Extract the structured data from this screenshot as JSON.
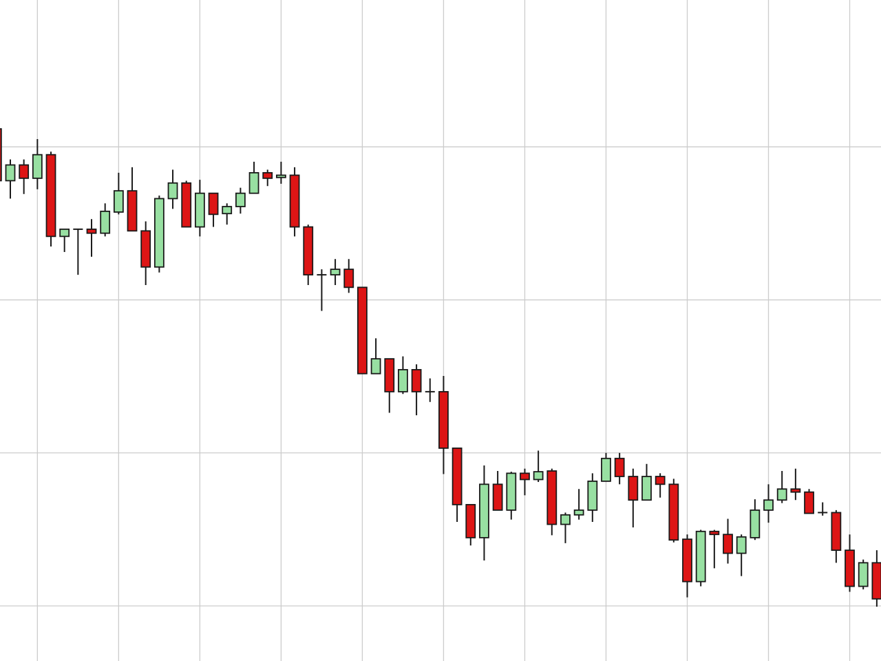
{
  "chart_data": {
    "type": "candlestick",
    "title": "",
    "xlabel": "",
    "ylabel": "",
    "ylim": [
      -36,
      396
    ],
    "grid": true,
    "y_gridlines": [
      0,
      100,
      200,
      300
    ],
    "x_gridline_every_n_candles": 6,
    "colors": {
      "up": "#98e0a2",
      "down": "#dd1515",
      "outline": "#1a1a1a",
      "grid": "#cccccc",
      "background": "#ffffff"
    },
    "ohlc_order": [
      "open",
      "high",
      "low",
      "close"
    ],
    "candles": [
      [
        311.8,
        324.6,
        275.9,
        277.9
      ],
      [
        277.9,
        291.8,
        266.2,
        288.2
      ],
      [
        288.2,
        291.8,
        269.2,
        279.5
      ],
      [
        279.5,
        305.1,
        272.3,
        294.9
      ],
      [
        294.9,
        296.9,
        234.9,
        241.5
      ],
      [
        241.5,
        246.2,
        231.3,
        246.2
      ],
      [
        246.2,
        246.2,
        216.4,
        246.2
      ],
      [
        246.2,
        252.8,
        228.2,
        243.6
      ],
      [
        243.6,
        263.1,
        241.5,
        257.9
      ],
      [
        257.4,
        283.1,
        255.9,
        271.3
      ],
      [
        271.3,
        286.7,
        245.1,
        245.1
      ],
      [
        245.1,
        251.3,
        209.7,
        221.5
      ],
      [
        221.5,
        268.2,
        217.9,
        266.2
      ],
      [
        266.2,
        285.1,
        259.5,
        276.4
      ],
      [
        276.4,
        277.9,
        247.7,
        247.7
      ],
      [
        247.7,
        278.5,
        241.5,
        269.7
      ],
      [
        269.7,
        269.7,
        247.7,
        255.9
      ],
      [
        256.4,
        263.1,
        249.2,
        261.0
      ],
      [
        261.0,
        273.3,
        256.4,
        269.7
      ],
      [
        269.7,
        290.3,
        269.7,
        283.1
      ],
      [
        283.1,
        285.1,
        274.4,
        279.5
      ],
      [
        280.0,
        290.3,
        275.9,
        281.5
      ],
      [
        281.5,
        286.7,
        241.5,
        247.7
      ],
      [
        247.7,
        249.2,
        209.7,
        216.4
      ],
      [
        216.4,
        220.0,
        192.8,
        216.4
      ],
      [
        216.4,
        226.7,
        209.7,
        220.0
      ],
      [
        220.0,
        226.7,
        204.6,
        208.2
      ],
      [
        208.2,
        208.2,
        151.8,
        151.8
      ],
      [
        151.8,
        174.9,
        151.8,
        161.5
      ],
      [
        161.5,
        161.5,
        126.2,
        140.0
      ],
      [
        140.0,
        163.1,
        138.5,
        154.4
      ],
      [
        154.4,
        157.9,
        124.6,
        140.0
      ],
      [
        140.0,
        148.7,
        133.3,
        140.0
      ],
      [
        140.0,
        150.3,
        86.2,
        103.1
      ],
      [
        103.1,
        103.1,
        54.9,
        66.2
      ],
      [
        66.2,
        66.2,
        39.5,
        44.6
      ],
      [
        44.6,
        91.8,
        29.7,
        79.5
      ],
      [
        79.5,
        88.2,
        62.6,
        62.6
      ],
      [
        62.6,
        87.7,
        56.4,
        86.7
      ],
      [
        86.7,
        89.7,
        72.3,
        82.6
      ],
      [
        82.6,
        101.5,
        81.0,
        87.7
      ],
      [
        88.2,
        89.7,
        46.2,
        53.3
      ],
      [
        53.3,
        61.0,
        41.0,
        59.5
      ],
      [
        59.5,
        76.4,
        56.4,
        62.6
      ],
      [
        62.6,
        86.7,
        54.9,
        81.5
      ],
      [
        81.5,
        100.0,
        81.5,
        96.4
      ],
      [
        96.4,
        100.0,
        79.5,
        84.6
      ],
      [
        84.6,
        89.7,
        51.3,
        69.2
      ],
      [
        69.2,
        92.8,
        69.2,
        84.6
      ],
      [
        84.6,
        86.7,
        70.8,
        79.5
      ],
      [
        79.5,
        83.1,
        41.5,
        43.1
      ],
      [
        43.6,
        46.7,
        5.6,
        15.9
      ],
      [
        15.9,
        49.7,
        12.8,
        48.7
      ],
      [
        48.7,
        49.7,
        24.6,
        46.7
      ],
      [
        46.7,
        56.9,
        27.7,
        34.4
      ],
      [
        34.4,
        46.7,
        19.5,
        45.1
      ],
      [
        44.6,
        69.7,
        43.1,
        62.6
      ],
      [
        62.6,
        79.5,
        54.4,
        69.2
      ],
      [
        69.2,
        88.2,
        67.2,
        76.4
      ],
      [
        76.4,
        89.7,
        69.2,
        74.4
      ],
      [
        74.4,
        76.4,
        60.5,
        60.5
      ],
      [
        61.0,
        67.7,
        59.0,
        61.0
      ],
      [
        61.0,
        62.6,
        28.2,
        36.4
      ],
      [
        36.4,
        46.7,
        9.2,
        12.8
      ],
      [
        12.8,
        30.3,
        10.8,
        28.2
      ],
      [
        28.2,
        36.4,
        -0.5,
        4.6
      ]
    ]
  }
}
